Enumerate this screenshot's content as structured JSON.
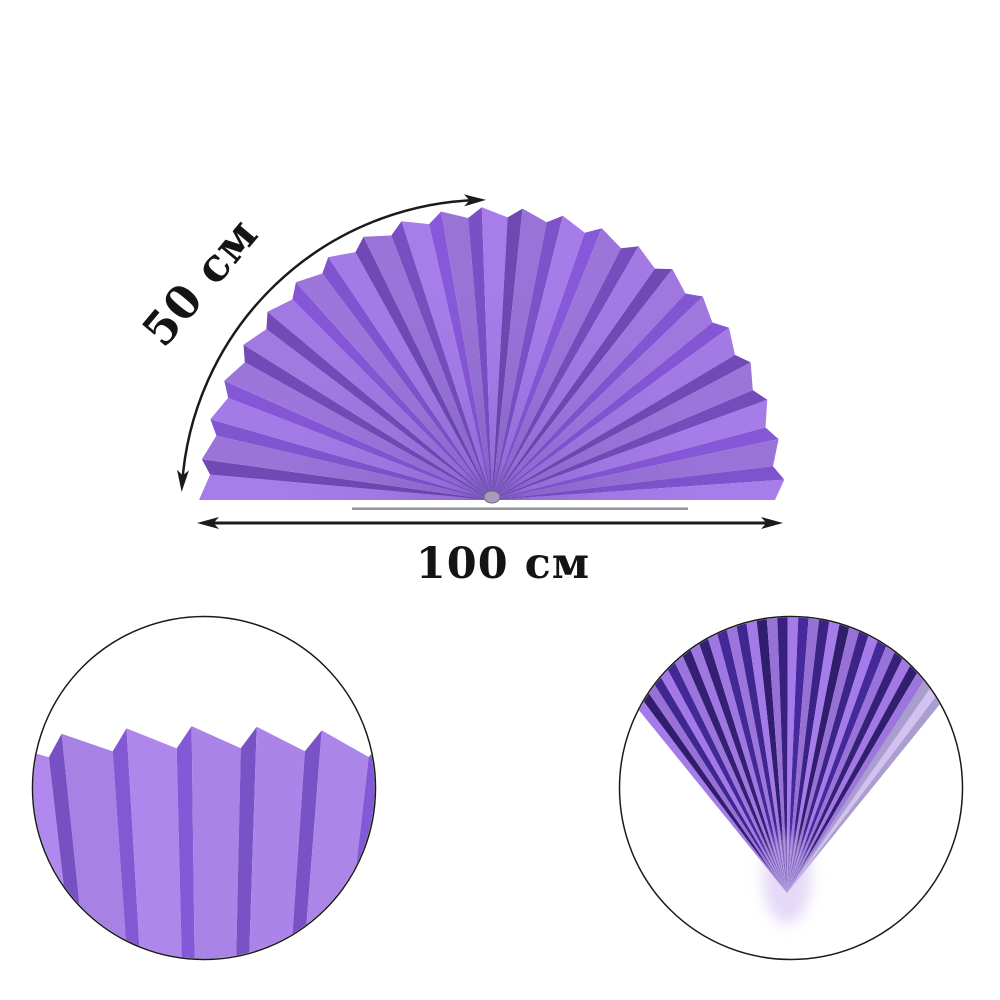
{
  "annotations": {
    "radius_label": "50 см",
    "width_label": "100 см",
    "line_color": "#1b1b1b",
    "text_color": "#141414"
  },
  "fan": {
    "pleat_light": "#a078e0",
    "pleat_dark": "#7b50c6",
    "pleat_count": 45,
    "center_shadow": "#2e1470",
    "clip_color": "#a49cb8",
    "clip_outline": "#6d6583",
    "base_shadow": "#64646e"
  },
  "detail_views": {
    "left": {
      "pleat_light": "#ab84e8",
      "pleat_dark": "#7e55cd",
      "border_color": "#1a1a1a"
    },
    "right": {
      "pleat_light": "#9e76e0",
      "pleat_dark": "#3b2384",
      "apex_glow": "#c9b3ef",
      "border_color": "#1a1a1a"
    }
  }
}
